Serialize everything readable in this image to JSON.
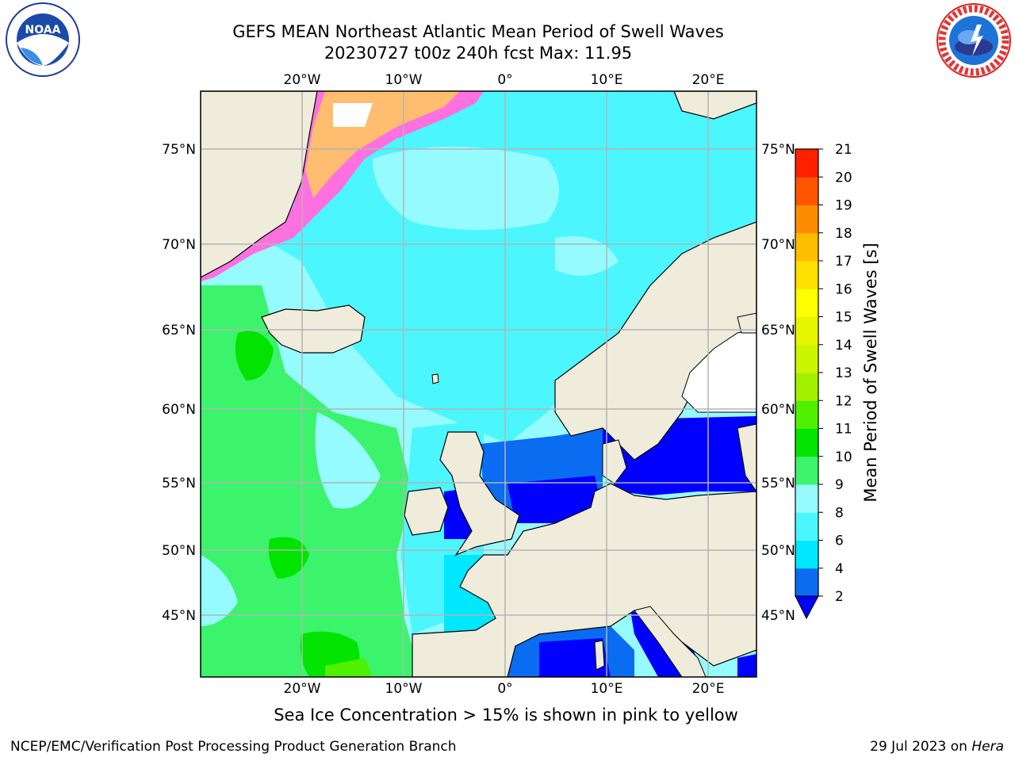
{
  "header": {
    "title_line1": "GEFS MEAN Northeast Atlantic Mean Period of Swell Waves",
    "title_line2": "20230727 t00z 240h fcst   Max: 11.95"
  },
  "logos": {
    "left": {
      "icon": "noaa-logo",
      "text": "NOAA"
    },
    "right": {
      "icon": "national-weather-service-logo",
      "text": "NATIONAL WEATHER SERVICE"
    }
  },
  "map": {
    "projection": "lat-lon",
    "lon_labels": [
      "20°W",
      "10°W",
      "0°",
      "10°E",
      "20°E"
    ],
    "lat_labels": [
      "75°N",
      "70°N",
      "65°N",
      "60°N",
      "55°N",
      "50°N",
      "45°N"
    ],
    "land_color": "#efecdc",
    "grid_color": "#b4b4b4"
  },
  "colorbar": {
    "title": "Mean Period of Swell Waves [s]",
    "ticks": [
      "2",
      "4",
      "6",
      "8",
      "9",
      "10",
      "11",
      "12",
      "13",
      "14",
      "15",
      "16",
      "17",
      "18",
      "19",
      "20",
      "21"
    ],
    "colors": [
      "#0a6cf0",
      "#00e8ff",
      "#4cf6ff",
      "#96fbff",
      "#3cf36c",
      "#00e400",
      "#4ff000",
      "#a2f000",
      "#ccf500",
      "#e8f500",
      "#ffff00",
      "#ffe000",
      "#ffbd00",
      "#ff8c00",
      "#ff5500",
      "#ff2000"
    ],
    "extend_under_color": "#0000ff"
  },
  "note": "Sea Ice Concentration > 15% is shown in pink to yellow",
  "footer": {
    "left": "NCEP/EMC/Verification Post Processing Product Generation Branch",
    "date": "29 Jul 2023 on ",
    "host": "Hera"
  }
}
